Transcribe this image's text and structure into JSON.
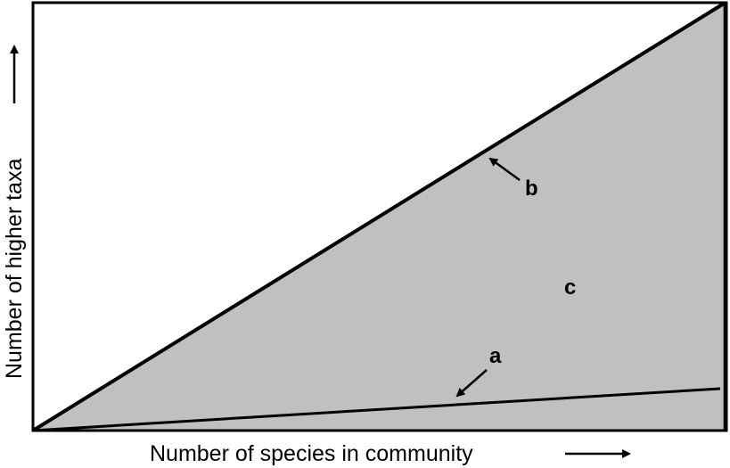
{
  "colors": {
    "region_fill": "#c0c0c0",
    "stroke": "#000000",
    "background": "#ffffff"
  },
  "axes": {
    "x_label": "Number of species in community",
    "y_label": "Number of higher taxa"
  },
  "labels": {
    "a": "a",
    "b": "b",
    "c": "c"
  }
}
